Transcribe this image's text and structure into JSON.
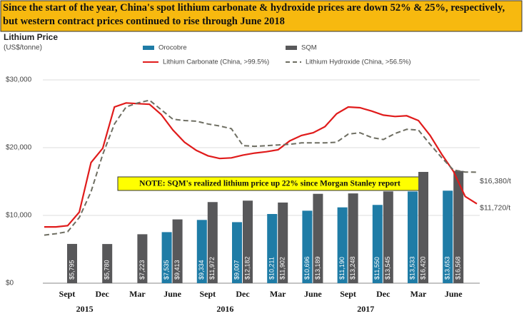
{
  "chart_data": {
    "type": "bar",
    "title": "Since the start of the year, China's spot lithium carbonate & hydroxide prices are down 52% & 25%, respectively, but western contract prices continued to rise through June 2018",
    "y_label": "Lithium Price",
    "y_unit": "(US$/tonne)",
    "note": "NOTE:  SQM's realized lithium price up 22% since Morgan Stanley report",
    "categories": [
      "Sept",
      "Dec",
      "Mar",
      "June",
      "Sept",
      "Dec",
      "Mar",
      "June",
      "Sept",
      "Dec",
      "Mar",
      "June"
    ],
    "year_labels": [
      "2015",
      "2016",
      "2017"
    ],
    "series": [
      {
        "name": "Orocobre",
        "color": "#1f7ca6",
        "values": [
          null,
          null,
          null,
          7535,
          9334,
          9007,
          10211,
          10696,
          11190,
          11550,
          13533,
          13653
        ],
        "value_labels": [
          null,
          null,
          null,
          "$7,535",
          "$9,334",
          "$9,007",
          "$10,211",
          "$10,696",
          "$11,190",
          "$11,550",
          "$13,533",
          "$13,653"
        ]
      },
      {
        "name": "SQM",
        "color": "#58585a",
        "values": [
          5795,
          5780,
          7223,
          9413,
          11972,
          12182,
          11902,
          13189,
          13248,
          13545,
          16420,
          16568
        ],
        "value_labels": [
          "$5,795",
          "$5,780",
          "$7,223",
          "$9,413",
          "$11,972",
          "$12,182",
          "$11,902",
          "$13,189",
          "$13,248",
          "$13,545",
          "$16,420",
          "$16,568"
        ]
      }
    ],
    "lines": [
      {
        "name": "Lithium Carbonate (China, >99.5%)",
        "color": "#e01b1b",
        "dashed": false,
        "end_label": "$11,720/t",
        "values": [
          8300,
          8300,
          8500,
          10500,
          17800,
          19900,
          26000,
          26600,
          26500,
          26400,
          24900,
          22600,
          20800,
          19600,
          18800,
          18400,
          18500,
          18900,
          19200,
          19400,
          19700,
          21000,
          21800,
          22200,
          23100,
          25000,
          26000,
          25900,
          25400,
          24800,
          24600,
          24700,
          24000,
          21800,
          19000,
          16500,
          12800,
          11720
        ]
      },
      {
        "name": "Lithium Hydroxide (China, >56.5%)",
        "color": "#6e6e62",
        "dashed": true,
        "end_label": "$16,380/t",
        "values": [
          7100,
          7300,
          7600,
          9700,
          13500,
          19000,
          23500,
          26000,
          26600,
          27000,
          25600,
          24200,
          24000,
          23900,
          23500,
          23200,
          22800,
          20300,
          20200,
          20300,
          20400,
          20500,
          20700,
          20700,
          20700,
          20800,
          22000,
          22200,
          21500,
          21200,
          22100,
          22700,
          22600,
          20500,
          18500,
          16700,
          16400,
          16380
        ]
      }
    ],
    "ylim": [
      0,
      33000
    ],
    "yticks": [
      {
        "value": 0,
        "label": "$0"
      },
      {
        "value": 10000,
        "label": "$10,000"
      },
      {
        "value": 20000,
        "label": "$20,000"
      },
      {
        "value": 30000,
        "label": "$30,000"
      }
    ],
    "grid": true
  }
}
